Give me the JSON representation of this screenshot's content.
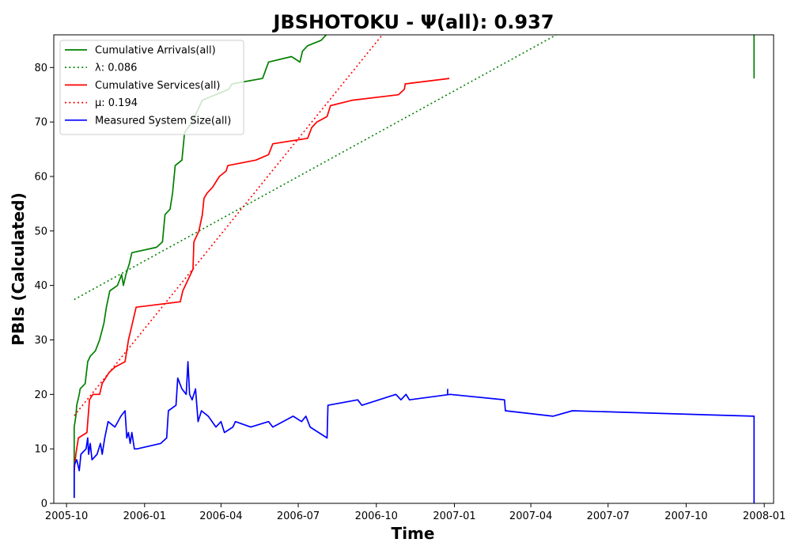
{
  "chart_data": {
    "type": "line",
    "title": "JBSHOTOKU -  Ψ(all): 0.937",
    "xlabel": "Time",
    "ylabel": "PBIs (Calculated)",
    "x_scale": "date",
    "xlim": [
      "2005-09-16",
      "2008-01-12"
    ],
    "ylim": [
      0,
      86
    ],
    "grid": false,
    "legend_position": "top-left",
    "x_ticks": [
      "2005-10-01",
      "2006-01-01",
      "2006-04-01",
      "2006-07-01",
      "2006-10-01",
      "2007-01-01",
      "2007-04-01",
      "2007-07-01",
      "2007-10-01",
      "2008-01-01"
    ],
    "x_tick_labels": [
      "2005-10",
      "2006-01",
      "2006-04",
      "2006-07",
      "2006-10",
      "2007-01",
      "2007-04",
      "2007-07",
      "2007-10",
      "2008-01"
    ],
    "y_ticks": [
      0,
      10,
      20,
      30,
      40,
      50,
      60,
      70,
      80
    ],
    "series": [
      {
        "name": "Cumulative Arrivals(all)",
        "style": "solid",
        "color": "#008000",
        "points": [
          [
            "2005-10-10",
            1
          ],
          [
            "2005-10-10",
            14
          ],
          [
            "2005-10-12",
            16
          ],
          [
            "2005-10-13",
            18
          ],
          [
            "2005-10-16",
            20
          ],
          [
            "2005-10-17",
            21
          ],
          [
            "2005-10-23",
            22
          ],
          [
            "2005-10-26",
            26
          ],
          [
            "2005-10-29",
            27
          ],
          [
            "2005-11-04",
            28
          ],
          [
            "2005-11-09",
            30
          ],
          [
            "2005-11-14",
            33
          ],
          [
            "2005-11-17",
            36
          ],
          [
            "2005-11-21",
            39
          ],
          [
            "2005-11-30",
            40
          ],
          [
            "2005-12-05",
            42
          ],
          [
            "2005-12-07",
            40
          ],
          [
            "2005-12-10",
            42
          ],
          [
            "2005-12-14",
            44
          ],
          [
            "2005-12-17",
            46
          ],
          [
            "2006-01-15",
            47
          ],
          [
            "2006-01-22",
            48
          ],
          [
            "2006-01-25",
            53
          ],
          [
            "2006-01-31",
            54
          ],
          [
            "2006-02-03",
            57
          ],
          [
            "2006-02-06",
            62
          ],
          [
            "2006-02-14",
            63
          ],
          [
            "2006-02-17",
            68
          ],
          [
            "2006-02-26",
            70
          ],
          [
            "2006-03-04",
            72
          ],
          [
            "2006-03-10",
            74
          ],
          [
            "2006-04-10",
            76
          ],
          [
            "2006-04-14",
            77
          ],
          [
            "2006-05-20",
            78
          ],
          [
            "2006-05-27",
            81
          ],
          [
            "2006-06-23",
            82
          ],
          [
            "2006-07-03",
            81
          ],
          [
            "2006-07-06",
            83
          ],
          [
            "2006-07-12",
            84
          ],
          [
            "2006-07-28",
            85
          ],
          [
            "2006-08-03",
            86
          ]
        ]
      },
      {
        "name": "λ: 0.086",
        "style": "dotted",
        "color": "#008000",
        "points": [
          [
            "2005-10-10",
            37.4
          ],
          [
            "2007-05-01",
            86
          ]
        ]
      },
      {
        "name": "Cumulative Services(all)",
        "style": "solid",
        "color": "#ff0000",
        "points": [
          [
            "2005-10-10",
            6
          ],
          [
            "2005-10-12",
            9
          ],
          [
            "2005-10-15",
            12
          ],
          [
            "2005-10-25",
            13
          ],
          [
            "2005-10-28",
            19
          ],
          [
            "2005-11-01",
            20
          ],
          [
            "2005-11-09",
            20
          ],
          [
            "2005-11-12",
            22
          ],
          [
            "2005-11-20",
            24
          ],
          [
            "2005-11-27",
            25
          ],
          [
            "2005-12-09",
            26
          ],
          [
            "2005-12-13",
            30
          ],
          [
            "2005-12-16",
            32
          ],
          [
            "2005-12-22",
            36
          ],
          [
            "2006-02-12",
            37
          ],
          [
            "2006-02-15",
            39
          ],
          [
            "2006-02-21",
            41
          ],
          [
            "2006-02-27",
            43
          ],
          [
            "2006-02-28",
            48
          ],
          [
            "2006-03-06",
            50
          ],
          [
            "2006-03-10",
            53
          ],
          [
            "2006-03-12",
            56
          ],
          [
            "2006-03-16",
            57
          ],
          [
            "2006-03-22",
            58
          ],
          [
            "2006-03-30",
            60
          ],
          [
            "2006-04-07",
            61
          ],
          [
            "2006-04-09",
            62
          ],
          [
            "2006-05-12",
            63
          ],
          [
            "2006-05-27",
            64
          ],
          [
            "2006-06-01",
            66
          ],
          [
            "2006-07-12",
            67
          ],
          [
            "2006-07-17",
            69
          ],
          [
            "2006-07-23",
            70
          ],
          [
            "2006-08-04",
            71
          ],
          [
            "2006-08-08",
            73
          ],
          [
            "2006-09-03",
            74
          ],
          [
            "2006-10-27",
            75
          ],
          [
            "2006-11-03",
            76
          ],
          [
            "2006-11-04",
            77
          ],
          [
            "2006-12-26",
            78
          ]
        ]
      },
      {
        "name": "μ: 0.194",
        "style": "dotted",
        "color": "#ff0000",
        "points": [
          [
            "2005-10-10",
            16.1
          ],
          [
            "2006-10-08",
            86
          ]
        ]
      },
      {
        "name": "Measured System Size(all)",
        "style": "solid",
        "color": "#0000ff",
        "points": [
          [
            "2005-10-10",
            1
          ],
          [
            "2005-10-10",
            7
          ],
          [
            "2005-10-13",
            8
          ],
          [
            "2005-10-16",
            6
          ],
          [
            "2005-10-18",
            9
          ],
          [
            "2005-10-24",
            10
          ],
          [
            "2005-10-26",
            12
          ],
          [
            "2005-10-27",
            9
          ],
          [
            "2005-10-29",
            11
          ],
          [
            "2005-10-31",
            8
          ],
          [
            "2005-11-06",
            9
          ],
          [
            "2005-11-10",
            11
          ],
          [
            "2005-11-12",
            9
          ],
          [
            "2005-11-15",
            12
          ],
          [
            "2005-11-19",
            15
          ],
          [
            "2005-11-27",
            14
          ],
          [
            "2005-12-04",
            16
          ],
          [
            "2005-12-09",
            17
          ],
          [
            "2005-12-11",
            12
          ],
          [
            "2005-12-13",
            13
          ],
          [
            "2005-12-15",
            11
          ],
          [
            "2005-12-17",
            13
          ],
          [
            "2005-12-20",
            10
          ],
          [
            "2005-12-23",
            10
          ],
          [
            "2006-01-20",
            11
          ],
          [
            "2006-01-27",
            12
          ],
          [
            "2006-01-29",
            17
          ],
          [
            "2006-02-07",
            18
          ],
          [
            "2006-02-09",
            23
          ],
          [
            "2006-02-14",
            21
          ],
          [
            "2006-02-19",
            20
          ],
          [
            "2006-02-21",
            26
          ],
          [
            "2006-02-23",
            20
          ],
          [
            "2006-02-26",
            19
          ],
          [
            "2006-03-02",
            21
          ],
          [
            "2006-03-05",
            15
          ],
          [
            "2006-03-09",
            17
          ],
          [
            "2006-03-17",
            16
          ],
          [
            "2006-03-26",
            14
          ],
          [
            "2006-04-01",
            15
          ],
          [
            "2006-04-05",
            13
          ],
          [
            "2006-04-15",
            14
          ],
          [
            "2006-04-18",
            15
          ],
          [
            "2006-05-06",
            14
          ],
          [
            "2006-05-27",
            15
          ],
          [
            "2006-06-01",
            14
          ],
          [
            "2006-06-25",
            16
          ],
          [
            "2006-07-05",
            15
          ],
          [
            "2006-07-10",
            16
          ],
          [
            "2006-07-15",
            14
          ],
          [
            "2006-07-25",
            13
          ],
          [
            "2006-08-04",
            12
          ],
          [
            "2006-08-05",
            18
          ],
          [
            "2006-09-09",
            19
          ],
          [
            "2006-09-14",
            18
          ],
          [
            "2006-10-24",
            20
          ],
          [
            "2006-10-30",
            19
          ],
          [
            "2006-11-05",
            20
          ],
          [
            "2006-11-09",
            19
          ],
          [
            "2006-12-27",
            20
          ],
          [
            "2007-03-01",
            19
          ],
          [
            "2007-03-02",
            17
          ],
          [
            "2007-04-27",
            16
          ],
          [
            "2007-05-20",
            17
          ],
          [
            "2007-12-20",
            16
          ],
          [
            "2007-12-20",
            0
          ]
        ]
      }
    ],
    "extra_segments": [
      {
        "series": "Cumulative Arrivals(all)",
        "color": "#008000",
        "points": [
          [
            "2007-12-20",
            86
          ],
          [
            "2007-12-20",
            78
          ]
        ]
      },
      {
        "series": "Measured System Size(all)",
        "color": "#0000ff",
        "points": [
          [
            "2006-12-24",
            20
          ],
          [
            "2006-12-24",
            21
          ]
        ]
      }
    ]
  }
}
